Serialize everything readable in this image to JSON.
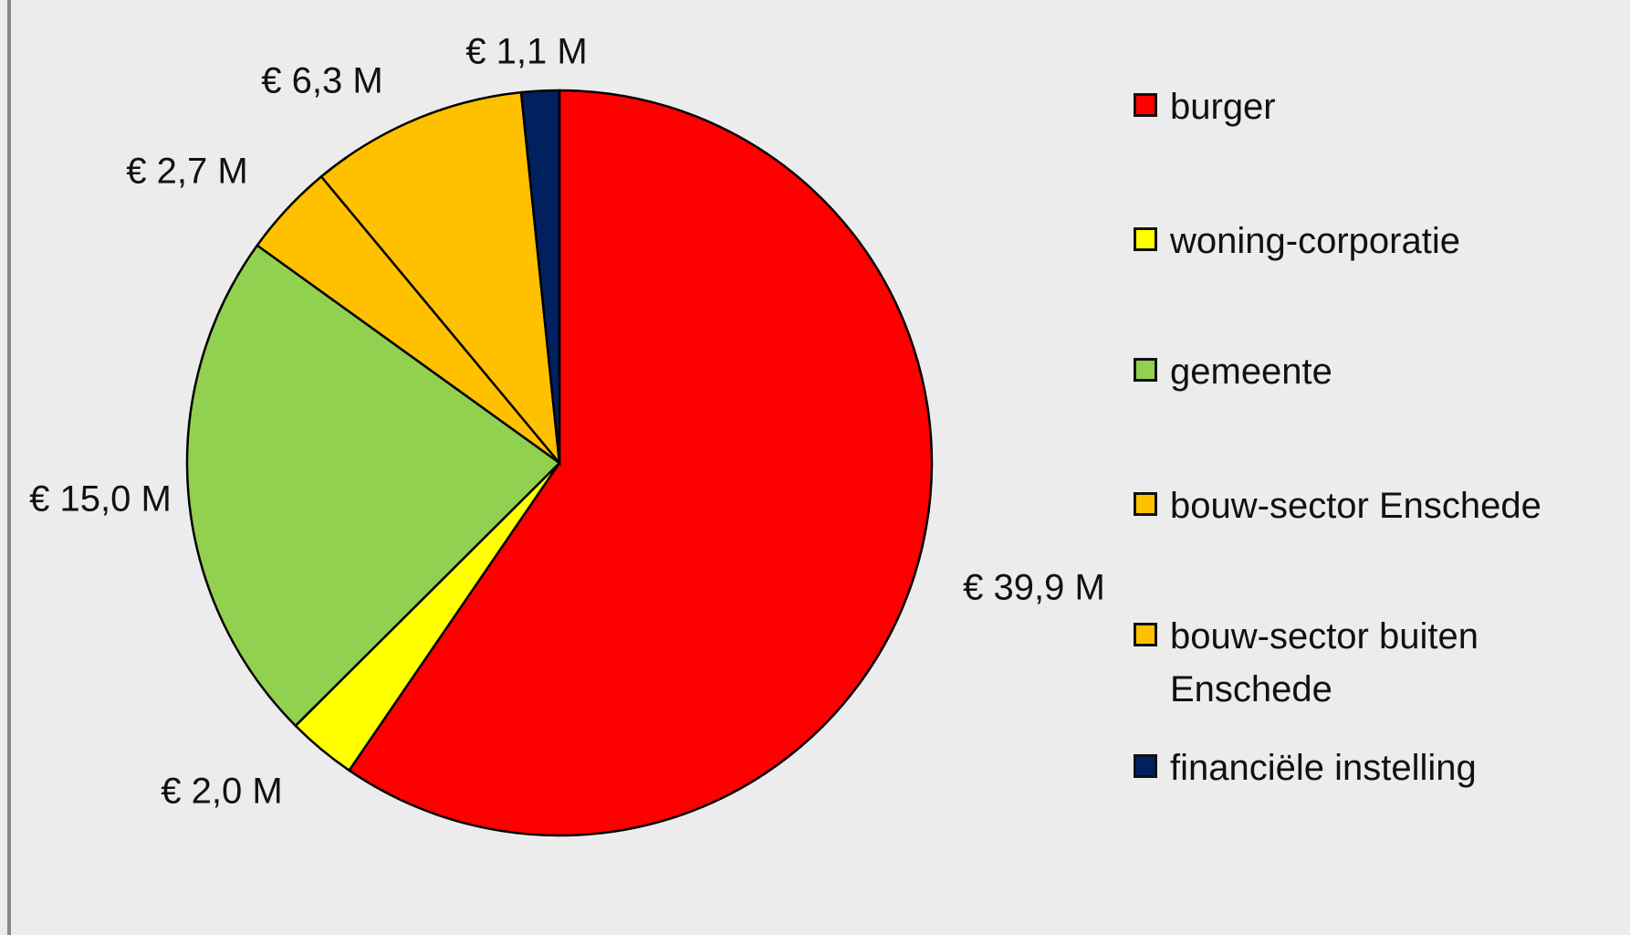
{
  "chart_data": {
    "type": "pie",
    "categories": [
      "burger",
      "woning-corporatie",
      "gemeente",
      "bouw-sector Enschede",
      "bouw-sector buiten Enschede",
      "financiële instelling"
    ],
    "values": [
      39.9,
      2.0,
      15.0,
      2.7,
      6.3,
      1.1
    ],
    "value_labels": [
      "€ 39,9 M",
      "€ 2,0 M",
      "€ 15,0 M",
      "€ 2,7 M",
      "€ 6,3 M",
      "€ 1,1 M"
    ],
    "colors": [
      "#ff0000",
      "#ffff00",
      "#92d050",
      "#ffc000",
      "#ffc000",
      "#002060"
    ],
    "legend": "right"
  }
}
